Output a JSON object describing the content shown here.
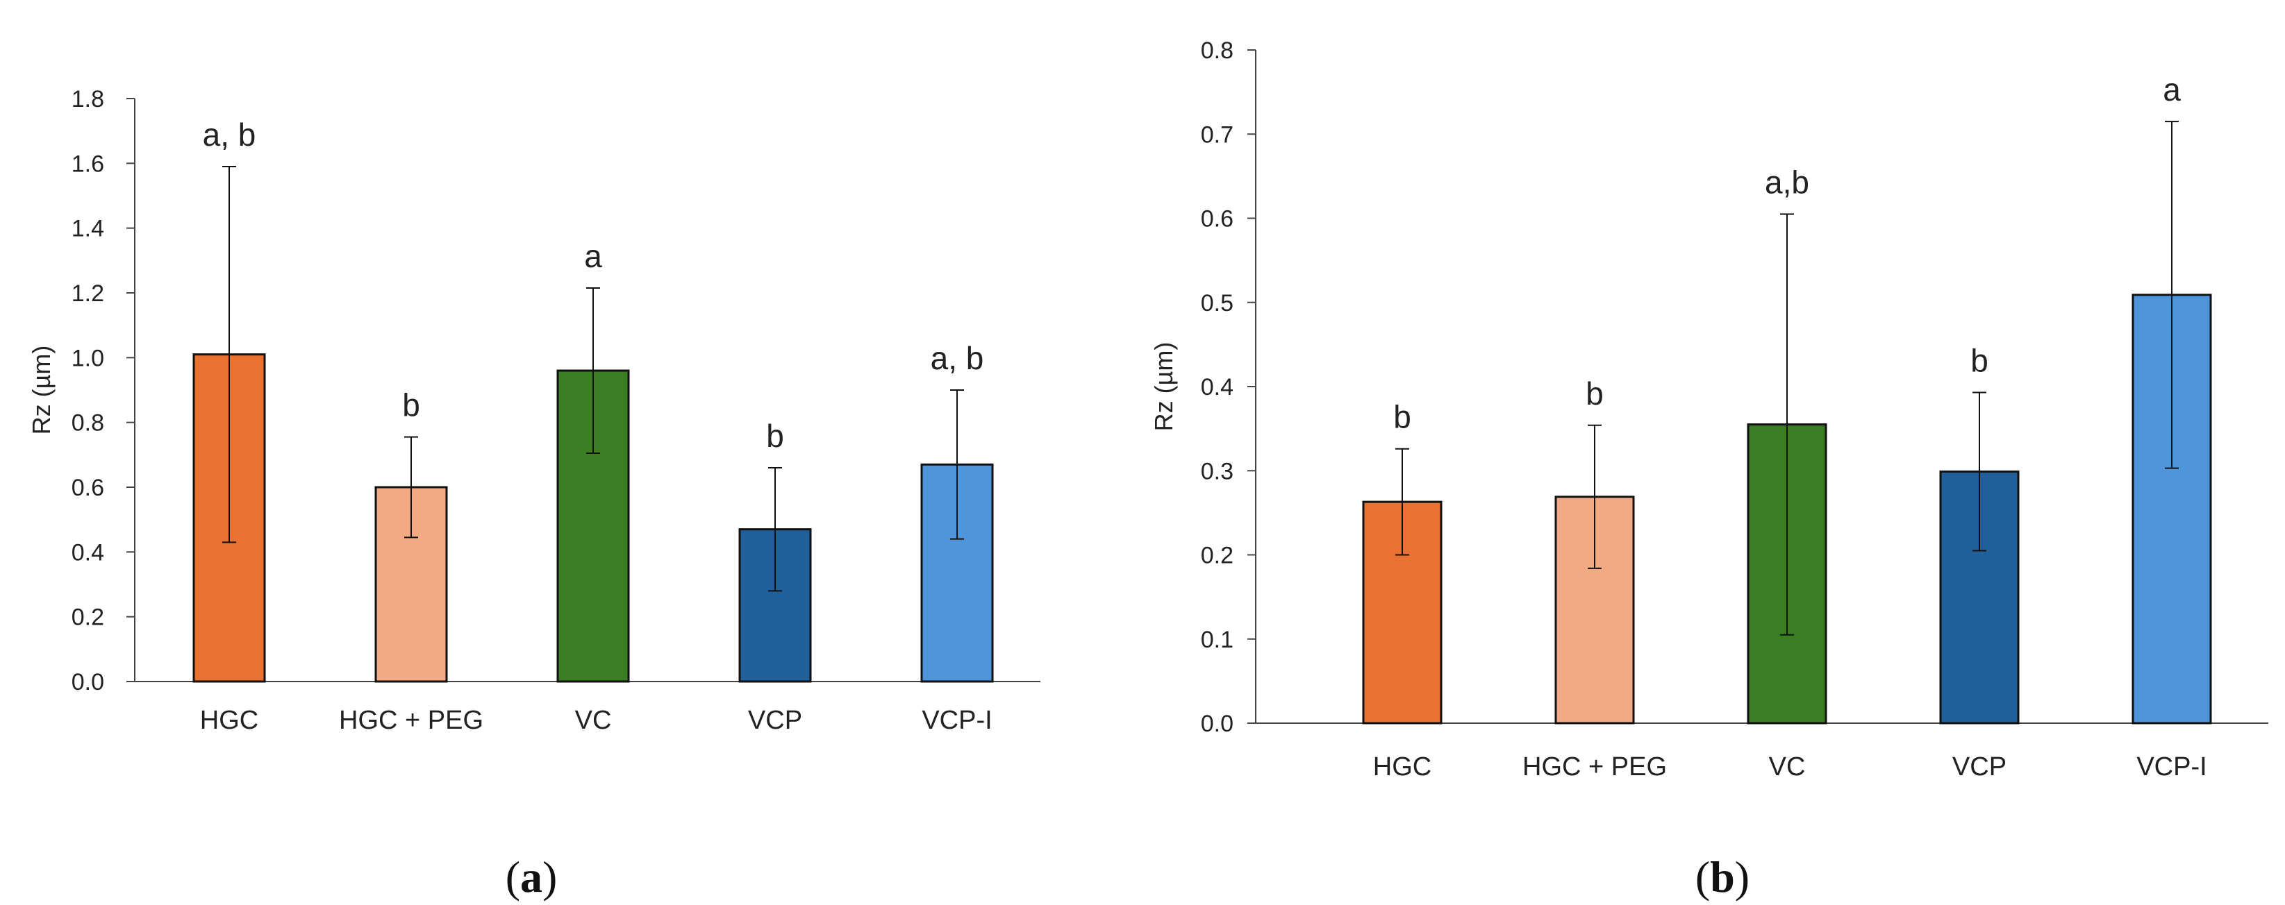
{
  "chart_data": [
    {
      "type": "bar",
      "panel_label": {
        "open": "(",
        "letter": "a",
        "close": ")"
      },
      "ylabel": "Rz (µm)",
      "xlabel": "",
      "ylim": [
        0,
        1.8
      ],
      "ytick_step": 0.2,
      "yticks": [
        "0.0",
        "0.2",
        "0.4",
        "0.6",
        "0.8",
        "1.0",
        "1.2",
        "1.4",
        "1.6",
        "1.8"
      ],
      "categories": [
        "HGC",
        "HGC + PEG",
        "VC",
        "VCP",
        "VCP-I"
      ],
      "values": [
        1.01,
        0.6,
        0.96,
        0.47,
        0.67
      ],
      "errors": [
        0.58,
        0.155,
        0.255,
        0.19,
        0.23
      ],
      "significance": [
        "a, b",
        "b",
        "a",
        "b",
        "a, b"
      ],
      "colors": [
        "#E97132",
        "#F2AA84",
        "#3B7D23",
        "#215F9A",
        "#4E95D9"
      ]
    },
    {
      "type": "bar",
      "panel_label": {
        "open": "(",
        "letter": "b",
        "close": ")"
      },
      "ylabel": "Rz (µm)",
      "xlabel": "",
      "ylim": [
        0,
        0.8
      ],
      "ytick_step": 0.1,
      "yticks": [
        "0.0",
        "0.1",
        "0.2",
        "0.3",
        "0.4",
        "0.5",
        "0.6",
        "0.7",
        "0.8"
      ],
      "categories": [
        "HGC",
        "HGC + PEG",
        "VC",
        "VCP",
        "VCP-I"
      ],
      "values": [
        0.263,
        0.269,
        0.355,
        0.299,
        0.509
      ],
      "errors": [
        0.063,
        0.085,
        0.25,
        0.094,
        0.206
      ],
      "significance": [
        "b",
        "b",
        "a,b",
        "b",
        "a"
      ],
      "colors": [
        "#E97132",
        "#F2AA84",
        "#3B7D23",
        "#215F9A",
        "#4E95D9"
      ]
    }
  ]
}
